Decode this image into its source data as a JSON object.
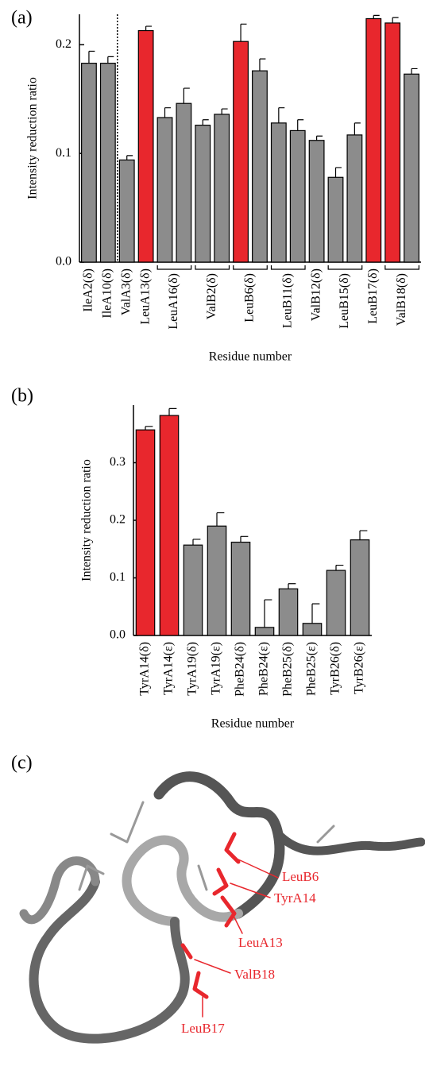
{
  "chart_data": [
    {
      "type": "bar",
      "label": "(a)",
      "ylabel": "Intensity reduction ratio",
      "xlabel": "Residue number",
      "categories": [
        "IleA2(δ)",
        "IleA10(δ)",
        "ValA3(δ)",
        "LeuA13(δ)",
        "LeuA16(δ)",
        null,
        "ValB2(δ)",
        null,
        "LeuB6(δ)",
        null,
        "LeuB11(δ)",
        null,
        "ValB12(δ)",
        "LeuB15(δ)",
        null,
        "LeuB17(δ)",
        "ValB18(δ)",
        null
      ],
      "values": [
        0.183,
        0.183,
        0.094,
        0.213,
        0.133,
        0.146,
        0.126,
        0.136,
        0.203,
        0.176,
        0.128,
        0.121,
        0.112,
        0.078,
        0.117,
        0.224,
        0.22,
        0.173
      ],
      "errors": [
        0.011,
        0.006,
        0.004,
        0.004,
        0.009,
        0.014,
        0.005,
        0.005,
        0.016,
        0.011,
        0.014,
        0.01,
        0.004,
        0.009,
        0.011,
        0.003,
        0.005,
        0.005
      ],
      "colors": [
        "#8c8c8c",
        "#8c8c8c",
        "#8c8c8c",
        "#e8272d",
        "#8c8c8c",
        "#8c8c8c",
        "#8c8c8c",
        "#8c8c8c",
        "#e8272d",
        "#8c8c8c",
        "#8c8c8c",
        "#8c8c8c",
        "#8c8c8c",
        "#8c8c8c",
        "#8c8c8c",
        "#e8272d",
        "#e8272d",
        "#8c8c8c"
      ],
      "ylim": [
        0,
        0.228
      ],
      "yticks": [
        {
          "value": 0,
          "label": "0.0"
        },
        0.1,
        0.2
      ]
    },
    {
      "type": "bar",
      "label": "(b)",
      "ylabel": "Intensity reduction ratio",
      "xlabel": "Residue number",
      "categories": [
        "TyrA14(δ)",
        "TyrA14(ε)",
        "TyrA19(δ)",
        "TyrA19(ε)",
        "PheB24(δ)",
        "PheB24(ε)",
        "PheB25(δ)",
        "PheB25(ε)",
        "TyrB26(δ)",
        "TyrB26(ε)"
      ],
      "values": [
        0.357,
        0.382,
        0.157,
        0.19,
        0.162,
        0.014,
        0.081,
        0.021,
        0.113,
        0.166
      ],
      "errors": [
        0.006,
        0.012,
        0.01,
        0.023,
        0.01,
        0.048,
        0.009,
        0.034,
        0.009,
        0.016
      ],
      "colors": [
        "#e8272d",
        "#e8272d",
        "#8c8c8c",
        "#8c8c8c",
        "#8c8c8c",
        "#8c8c8c",
        "#8c8c8c",
        "#8c8c8c",
        "#8c8c8c",
        "#8c8c8c"
      ],
      "ylim": [
        0,
        0.4
      ],
      "yticks": [
        {
          "value": 0,
          "label": "0.0"
        },
        0.1,
        0.2,
        0.3
      ]
    }
  ],
  "structure": {
    "label": "(c)",
    "residues": [
      "LeuB6",
      "TyrA14",
      "LeuA13",
      "ValB18",
      "LeuB17"
    ]
  }
}
